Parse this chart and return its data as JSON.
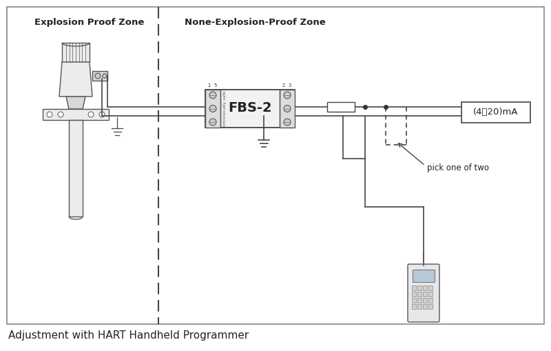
{
  "title": "Adjustment with HART Handheld Programmer",
  "zone1_label": "Explosion Proof Zone",
  "zone2_label": "None-Explosion-Proof Zone",
  "fbs_label": "FBS-2",
  "current_label": "(4～20)mA",
  "pick_label": "pick one of two",
  "line_color": "#444444",
  "text_color": "#222222",
  "gray_fill": "#e8e8e8",
  "dark_gray": "#666666",
  "mid_gray": "#aaaaaa",
  "white": "#ffffff"
}
